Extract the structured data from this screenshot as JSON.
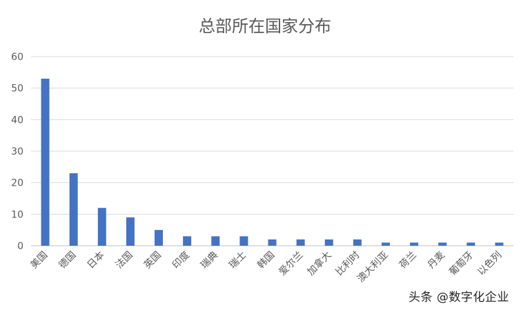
{
  "chart_data": {
    "type": "bar",
    "title": "总部所在国家分布",
    "categories": [
      "美国",
      "德国",
      "日本",
      "法国",
      "英国",
      "印度",
      "瑞典",
      "瑞士",
      "韩国",
      "爱尔兰",
      "加拿大",
      "比利时",
      "澳大利亚",
      "荷兰",
      "丹麦",
      "葡萄牙",
      "以色列"
    ],
    "values": [
      53,
      23,
      12,
      9,
      5,
      3,
      3,
      3,
      2,
      2,
      2,
      2,
      1,
      1,
      1,
      1,
      1
    ],
    "ylim": [
      0,
      60
    ],
    "yticks": [
      0,
      10,
      20,
      30,
      40,
      50,
      60
    ],
    "grid": true,
    "bar_color": "#4472c4"
  },
  "watermark": "头条 @数字化企业"
}
